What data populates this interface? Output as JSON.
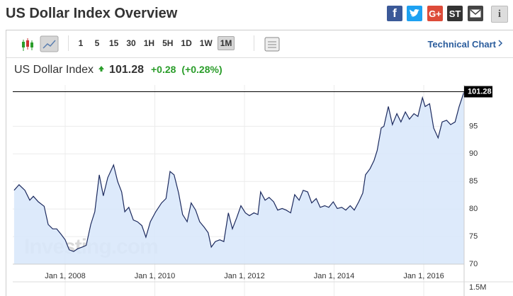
{
  "header": {
    "title": "US Dollar Index Overview",
    "share_buttons": [
      "f",
      "G+",
      "ST",
      "i"
    ]
  },
  "toolbar": {
    "intervals": [
      "1",
      "5",
      "15",
      "30",
      "1H",
      "5H",
      "1D",
      "1W",
      "1M"
    ],
    "selected": "1M",
    "link": "Technical Chart"
  },
  "quote": {
    "name": "US Dollar Index",
    "price": "101.28",
    "change": "+0.28",
    "change_percent": "(+0.28%)"
  },
  "chart_data": {
    "type": "area",
    "color": "#1c2a5e",
    "fill": "#d9e8fb",
    "grid": true,
    "watermark": "Investing.com",
    "x": [
      2006.86,
      2006.97,
      2007.1,
      2007.21,
      2007.29,
      2007.4,
      2007.53,
      2007.62,
      2007.72,
      2007.81,
      2007.91,
      2008.0,
      2008.09,
      2008.19,
      2008.28,
      2008.38,
      2008.47,
      2008.57,
      2008.66,
      2008.76,
      2008.85,
      2008.95,
      2009.08,
      2009.17,
      2009.26,
      2009.33,
      2009.42,
      2009.52,
      2009.61,
      2009.71,
      2009.8,
      2009.9,
      2010.02,
      2010.15,
      2010.25,
      2010.34,
      2010.43,
      2010.53,
      2010.62,
      2010.72,
      2010.81,
      2010.91,
      2011.0,
      2011.1,
      2011.19,
      2011.26,
      2011.35,
      2011.45,
      2011.54,
      2011.64,
      2011.73,
      2011.83,
      2011.92,
      2012.02,
      2012.11,
      2012.21,
      2012.3,
      2012.36,
      2012.46,
      2012.55,
      2012.65,
      2012.74,
      2012.84,
      2012.93,
      2013.03,
      2013.12,
      2013.22,
      2013.31,
      2013.41,
      2013.5,
      2013.6,
      2013.69,
      2013.79,
      2013.88,
      2013.98,
      2014.07,
      2014.17,
      2014.26,
      2014.36,
      2014.45,
      2014.55,
      2014.64,
      2014.7,
      2014.8,
      2014.89,
      2014.96,
      2015.05,
      2015.11,
      2015.21,
      2015.3,
      2015.4,
      2015.49,
      2015.59,
      2015.68,
      2015.78,
      2015.87,
      2015.97,
      2016.03,
      2016.13,
      2016.22,
      2016.32,
      2016.41,
      2016.51,
      2016.6,
      2016.7,
      2016.79,
      2016.9
    ],
    "values": [
      83.4,
      84.4,
      83.4,
      81.6,
      82.3,
      81.3,
      80.5,
      77.2,
      76.4,
      76.4,
      75.4,
      74.4,
      72.6,
      72.3,
      72.8,
      73.1,
      73.4,
      77.2,
      79.5,
      86.2,
      82.4,
      85.7,
      88.0,
      85.0,
      83.1,
      79.5,
      80.3,
      78.0,
      77.7,
      77.0,
      74.9,
      77.7,
      79.5,
      81.1,
      81.9,
      86.8,
      86.2,
      82.9,
      79.0,
      77.7,
      81.1,
      79.8,
      77.7,
      76.7,
      75.7,
      73.1,
      74.1,
      74.4,
      74.1,
      79.3,
      76.4,
      78.5,
      80.6,
      79.3,
      78.8,
      79.3,
      79.0,
      83.1,
      81.6,
      82.1,
      81.3,
      79.8,
      80.1,
      79.8,
      79.3,
      82.6,
      81.6,
      83.4,
      83.1,
      81.1,
      81.9,
      80.3,
      80.6,
      80.3,
      81.3,
      80.1,
      80.3,
      79.8,
      80.6,
      79.8,
      81.3,
      82.9,
      86.2,
      87.3,
      88.8,
      90.6,
      94.7,
      95.0,
      98.6,
      95.3,
      97.3,
      95.8,
      97.6,
      96.3,
      97.3,
      96.8,
      100.2,
      98.6,
      99.1,
      94.7,
      92.9,
      95.8,
      96.1,
      95.3,
      95.8,
      98.6,
      101.28
    ],
    "xlim": [
      2006.83,
      2016.9
    ],
    "xticks": [
      {
        "value": 2008,
        "label": "Jan 1, 2008"
      },
      {
        "value": 2010,
        "label": "Jan 1, 2010"
      },
      {
        "value": 2012,
        "label": "Jan 1, 2012"
      },
      {
        "value": 2014,
        "label": "Jan 1, 2014"
      },
      {
        "value": 2016,
        "label": "Jan 1, 2016"
      }
    ],
    "ylim": [
      70,
      102.5
    ],
    "yticks": [
      70,
      75,
      80,
      85,
      90,
      95
    ],
    "volume_ticks": [
      {
        "value": 1500000,
        "label": "1.5M"
      }
    ]
  }
}
